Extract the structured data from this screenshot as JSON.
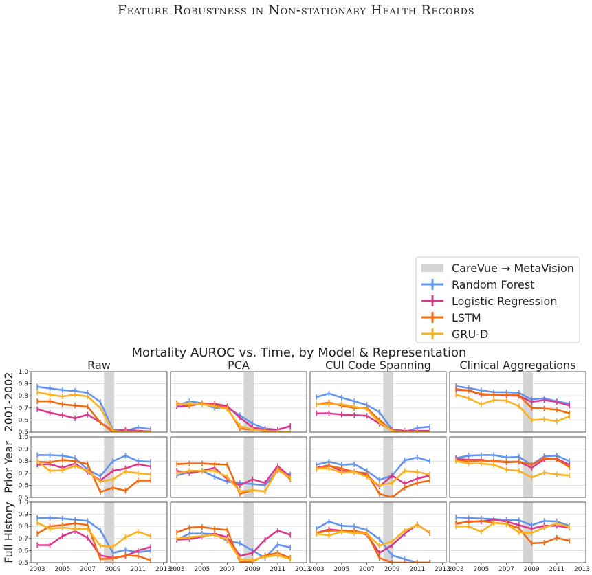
{
  "page_title": "Feature Robustness in Non-stationary Health Records",
  "chart_data": {
    "type": "line",
    "title": "Mortality AUROC vs. Time, by Model & Representation",
    "columns": [
      "Raw",
      "PCA",
      "CUI Code Spanning",
      "Clinical Aggregations"
    ],
    "rows": [
      "2001-2002",
      "Prior Year",
      "Full History"
    ],
    "x_ticks": [
      2003,
      2005,
      2007,
      2009,
      2011,
      2013
    ],
    "y_ticks": [
      "0.5",
      "0.6",
      "0.7",
      "0.8",
      "0.9",
      "1.0"
    ],
    "xlim": [
      2002.5,
      2013.3
    ],
    "ylim": [
      0.5,
      1.0
    ],
    "x": [
      2003,
      2004,
      2005,
      2006,
      2007,
      2008,
      2009,
      2010,
      2011,
      2012
    ],
    "shaded_region": [
      2008.3,
      2009.1
    ],
    "grid": "horizontal",
    "legend": {
      "placement": "upper-right",
      "items": [
        {
          "label": "CareVue → MetaVision",
          "kind": "patch",
          "color": "#d4d4d4"
        },
        {
          "label": "Random Forest",
          "kind": "line",
          "color": "#6495ed"
        },
        {
          "label": "Logistic Regression",
          "kind": "line",
          "color": "#d93a8c"
        },
        {
          "label": "LSTM",
          "kind": "line",
          "color": "#f26a10"
        },
        {
          "label": "GRU-D",
          "kind": "line",
          "color": "#fbb122"
        }
      ]
    },
    "series_colors": {
      "rf": "#6495ed",
      "lr": "#d93a8c",
      "lstm": "#f26a10",
      "grud": "#fbb122"
    },
    "panels": [
      [
        {
          "rf": [
            0.875,
            0.862,
            0.848,
            0.84,
            0.825,
            0.75,
            0.52,
            0.51,
            0.54,
            0.525
          ],
          "lr": [
            0.69,
            0.66,
            0.64,
            0.615,
            0.645,
            0.58,
            0.51,
            0.52,
            0.51,
            0.505
          ],
          "lstm": [
            0.755,
            0.755,
            0.73,
            0.72,
            0.71,
            0.58,
            0.5,
            0.5,
            0.5,
            0.5
          ],
          "grud": [
            0.83,
            0.81,
            0.795,
            0.81,
            0.795,
            0.7,
            0.51,
            0.5,
            0.5,
            0.5
          ]
        },
        {
          "rf": [
            0.72,
            0.755,
            0.74,
            0.7,
            0.7,
            0.64,
            0.57,
            0.53,
            0.52,
            0.55
          ],
          "lr": [
            0.71,
            0.72,
            0.735,
            0.735,
            0.715,
            0.62,
            0.54,
            0.52,
            0.52,
            0.55
          ],
          "lstm": [
            0.74,
            0.72,
            0.74,
            0.72,
            0.7,
            0.53,
            0.52,
            0.51,
            0.5,
            0.5
          ],
          "grud": [
            0.73,
            0.735,
            0.73,
            0.715,
            0.69,
            0.55,
            0.52,
            0.51,
            0.5,
            0.5
          ]
        },
        {
          "rf": [
            0.79,
            0.82,
            0.785,
            0.755,
            0.725,
            0.665,
            0.52,
            0.5,
            0.535,
            0.545
          ],
          "lr": [
            0.655,
            0.655,
            0.645,
            0.64,
            0.635,
            0.57,
            0.52,
            0.51,
            0.51,
            0.51
          ],
          "lstm": [
            0.73,
            0.745,
            0.72,
            0.7,
            0.7,
            0.6,
            0.51,
            0.5,
            0.5,
            0.5
          ],
          "grud": [
            0.73,
            0.73,
            0.73,
            0.71,
            0.69,
            0.58,
            0.51,
            0.5,
            0.5,
            0.5
          ]
        },
        {
          "rf": [
            0.88,
            0.865,
            0.845,
            0.83,
            0.83,
            0.825,
            0.77,
            0.78,
            0.755,
            0.735
          ],
          "lr": [
            0.85,
            0.845,
            0.81,
            0.81,
            0.805,
            0.8,
            0.75,
            0.765,
            0.75,
            0.72
          ],
          "lstm": [
            0.855,
            0.845,
            0.815,
            0.81,
            0.81,
            0.805,
            0.7,
            0.695,
            0.685,
            0.655
          ],
          "grud": [
            0.81,
            0.78,
            0.73,
            0.765,
            0.76,
            0.715,
            0.6,
            0.605,
            0.59,
            0.63
          ]
        }
      ],
      [
        {
          "rf": [
            0.85,
            0.85,
            0.845,
            0.825,
            0.73,
            0.675,
            0.8,
            0.845,
            0.8,
            0.795
          ],
          "lr": [
            0.77,
            0.775,
            0.745,
            0.78,
            0.71,
            0.64,
            0.72,
            0.74,
            0.775,
            0.755
          ],
          "lstm": [
            0.795,
            0.79,
            0.81,
            0.8,
            0.775,
            0.545,
            0.58,
            0.555,
            0.64,
            0.64
          ],
          "grud": [
            0.8,
            0.72,
            0.725,
            0.76,
            0.72,
            0.63,
            0.65,
            0.715,
            0.7,
            0.69
          ]
        },
        {
          "rf": [
            0.68,
            0.71,
            0.72,
            0.67,
            0.63,
            0.62,
            0.61,
            0.6,
            0.72,
            0.69
          ],
          "lr": [
            0.72,
            0.7,
            0.72,
            0.745,
            0.65,
            0.6,
            0.65,
            0.62,
            0.76,
            0.67
          ],
          "lstm": [
            0.775,
            0.78,
            0.78,
            0.775,
            0.77,
            0.53,
            0.56,
            0.55,
            0.74,
            0.65
          ],
          "grud": [
            0.7,
            0.72,
            0.72,
            0.72,
            0.67,
            0.55,
            0.56,
            0.55,
            0.73,
            0.66
          ]
        },
        {
          "rf": [
            0.77,
            0.795,
            0.77,
            0.775,
            0.72,
            0.645,
            0.68,
            0.805,
            0.83,
            0.8
          ],
          "lr": [
            0.745,
            0.765,
            0.72,
            0.715,
            0.685,
            0.59,
            0.68,
            0.615,
            0.655,
            0.68
          ],
          "lstm": [
            0.735,
            0.76,
            0.74,
            0.71,
            0.7,
            0.53,
            0.5,
            0.58,
            0.62,
            0.64
          ],
          "grud": [
            0.74,
            0.74,
            0.705,
            0.71,
            0.67,
            0.6,
            0.62,
            0.72,
            0.71,
            0.69
          ]
        },
        {
          "rf": [
            0.825,
            0.845,
            0.85,
            0.85,
            0.83,
            0.835,
            0.77,
            0.84,
            0.845,
            0.8
          ],
          "lr": [
            0.82,
            0.81,
            0.81,
            0.8,
            0.79,
            0.795,
            0.745,
            0.815,
            0.82,
            0.77
          ],
          "lstm": [
            0.81,
            0.8,
            0.805,
            0.8,
            0.795,
            0.795,
            0.77,
            0.825,
            0.815,
            0.75
          ],
          "grud": [
            0.8,
            0.78,
            0.78,
            0.77,
            0.73,
            0.72,
            0.665,
            0.705,
            0.69,
            0.68
          ]
        }
      ],
      [
        {
          "rf": [
            0.87,
            0.87,
            0.865,
            0.855,
            0.845,
            0.77,
            0.58,
            0.605,
            0.585,
            0.6
          ],
          "lr": [
            0.645,
            0.645,
            0.72,
            0.76,
            0.705,
            0.56,
            0.54,
            0.555,
            0.6,
            0.63
          ],
          "lstm": [
            0.74,
            0.8,
            0.81,
            0.825,
            0.81,
            0.53,
            0.535,
            0.56,
            0.555,
            0.52
          ],
          "grud": [
            0.83,
            0.78,
            0.79,
            0.78,
            0.78,
            0.64,
            0.63,
            0.71,
            0.755,
            0.72
          ]
        },
        {
          "rf": [
            0.69,
            0.74,
            0.74,
            0.735,
            0.68,
            0.66,
            0.6,
            0.54,
            0.65,
            0.625
          ],
          "lr": [
            0.69,
            0.695,
            0.715,
            0.74,
            0.71,
            0.555,
            0.58,
            0.69,
            0.765,
            0.73
          ],
          "lstm": [
            0.75,
            0.79,
            0.795,
            0.78,
            0.77,
            0.51,
            0.51,
            0.56,
            0.58,
            0.54
          ],
          "grud": [
            0.7,
            0.71,
            0.72,
            0.73,
            0.69,
            0.53,
            0.52,
            0.55,
            0.56,
            0.53
          ]
        },
        {
          "rf": [
            0.78,
            0.84,
            0.805,
            0.8,
            0.77,
            0.695,
            0.56,
            0.53,
            0.5,
            0.5
          ],
          "lr": [
            0.745,
            0.775,
            0.765,
            0.765,
            0.73,
            0.58,
            0.645,
            0.74,
            0.815,
            0.745
          ],
          "lstm": [
            0.745,
            0.765,
            0.765,
            0.76,
            0.745,
            0.54,
            0.5,
            0.5,
            0.5,
            0.5
          ],
          "grud": [
            0.74,
            0.725,
            0.755,
            0.745,
            0.74,
            0.64,
            0.675,
            0.765,
            0.81,
            0.75
          ]
        },
        {
          "rf": [
            0.875,
            0.87,
            0.865,
            0.86,
            0.855,
            0.85,
            0.81,
            0.845,
            0.84,
            0.805
          ],
          "lr": [
            0.82,
            0.84,
            0.84,
            0.855,
            0.84,
            0.81,
            0.78,
            0.805,
            0.805,
            0.79
          ],
          "lstm": [
            0.825,
            0.835,
            0.845,
            0.83,
            0.82,
            0.785,
            0.66,
            0.665,
            0.705,
            0.68
          ],
          "grud": [
            0.8,
            0.8,
            0.755,
            0.83,
            0.82,
            0.75,
            0.745,
            0.79,
            0.825,
            0.795
          ]
        }
      ]
    ]
  }
}
